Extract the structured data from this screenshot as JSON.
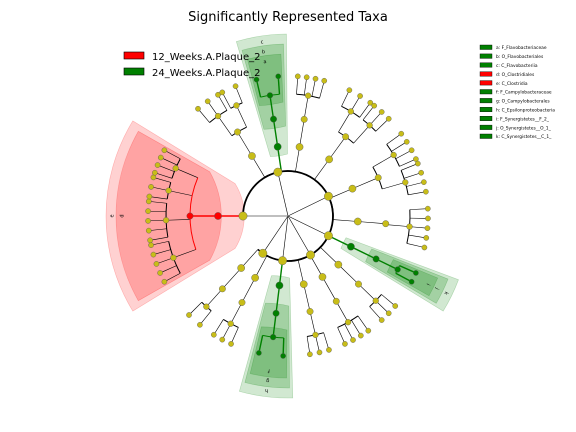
{
  "chart_data": {
    "type": "cladogram",
    "title": "Significantly Represented Taxa",
    "classes": [
      {
        "name": "12_Weeks.A.Plaque_2",
        "color": "#ff0000"
      },
      {
        "name": "24_Weeks.A.Plaque_2",
        "color": "#008000"
      }
    ],
    "biomarkers": [
      {
        "letter": "a",
        "label": "a: F_Flavobacteriaceae",
        "class": "24_Weeks.A.Plaque_2"
      },
      {
        "letter": "b",
        "label": "b: O_Flavobacteriales",
        "class": "24_Weeks.A.Plaque_2"
      },
      {
        "letter": "c",
        "label": "c: C_Flavobacteriia",
        "class": "24_Weeks.A.Plaque_2"
      },
      {
        "letter": "d",
        "label": "d: O_Clostridiales",
        "class": "12_Weeks.A.Plaque_2"
      },
      {
        "letter": "e",
        "label": "e: C_Clostridia",
        "class": "12_Weeks.A.Plaque_2"
      },
      {
        "letter": "f",
        "label": "f: F_Campylobacteraceae",
        "class": "24_Weeks.A.Plaque_2"
      },
      {
        "letter": "g",
        "label": "g: O_Campylobacterales",
        "class": "24_Weeks.A.Plaque_2"
      },
      {
        "letter": "h",
        "label": "h: C_Epsilonproteobacteria",
        "class": "24_Weeks.A.Plaque_2"
      },
      {
        "letter": "i",
        "label": "i: F_Synergistetes__F_2_",
        "class": "24_Weeks.A.Plaque_2"
      },
      {
        "letter": "j",
        "label": "j: O_Synergistetes__O_1_",
        "class": "24_Weeks.A.Plaque_2"
      },
      {
        "letter": "k",
        "label": "k: C_Synergistetes__C_1_",
        "class": "24_Weeks.A.Plaque_2"
      }
    ],
    "clade_letters_shown": [
      "a",
      "b",
      "c",
      "d",
      "e",
      "f",
      "g",
      "h",
      "i",
      "j",
      "k"
    ],
    "node_color_default": "#c8bd18",
    "legend_placement": "top-left (classes), top-right (biomarkers)",
    "grid": false
  }
}
